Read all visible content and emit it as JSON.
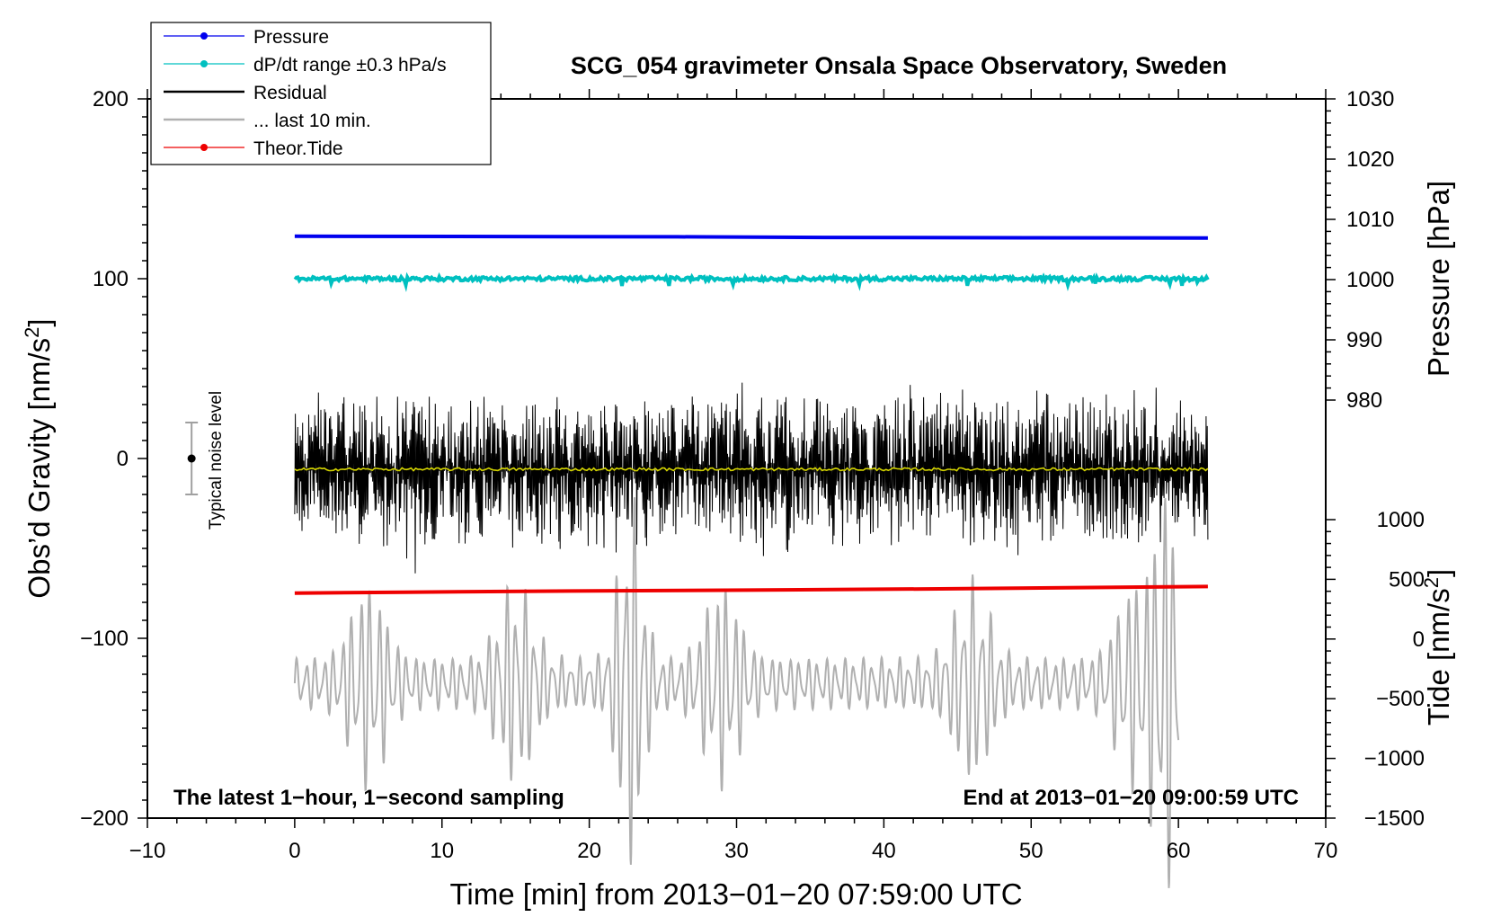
{
  "chart_data": {
    "type": "line",
    "title": "SCG_054 gravimeter Onsala Space Observatory, Sweden",
    "xlabel": "Time [min] from 2013−01−20 07:59:00 UTC",
    "ylabel": "Obs’d Gravity [nm/s",
    "ylabel_sup": "2",
    "ylabel_end": "]",
    "xlim": [
      -10,
      70
    ],
    "ylim": [
      -200,
      200
    ],
    "x_ticks": [
      -10,
      0,
      10,
      20,
      30,
      40,
      50,
      60,
      70
    ],
    "x_tick_labels": [
      "−10",
      "0",
      "10",
      "20",
      "30",
      "40",
      "50",
      "60",
      "70"
    ],
    "y_ticks": [
      -200,
      -100,
      0,
      100,
      200
    ],
    "y_tick_labels": [
      "−200",
      "−100",
      "0",
      "100",
      "200"
    ],
    "pressure_axis": {
      "label": "Pressure [hPa]",
      "ticks": [
        980,
        990,
        1000,
        1010,
        1020,
        1030
      ],
      "tick_labels": [
        "980",
        "990",
        "1000",
        "1010",
        "1020",
        "1030"
      ],
      "range": [
        970,
        1030
      ]
    },
    "tide_axis": {
      "label": "Tide [nm/s",
      "label_sup": "2",
      "label_end": "]",
      "ticks": [
        -1500,
        -1000,
        -500,
        0,
        500,
        1000
      ],
      "tick_labels": [
        "−1500",
        "−1000",
        "−500",
        "0",
        "500",
        "1000"
      ],
      "range": [
        -1500,
        1000
      ]
    },
    "series": [
      {
        "name": "Pressure",
        "color": "#0000ee",
        "axis": "pressure",
        "x": [
          0,
          26,
          36,
          62
        ],
        "values": [
          1007.2,
          1007.1,
          1007.0,
          1006.9
        ]
      },
      {
        "name": "dP/dt range ±0.3 hPa/s",
        "color": "#00c0c0",
        "axis": "gravity",
        "x": [
          0,
          62
        ],
        "values": [
          100,
          100
        ]
      },
      {
        "name": "Residual",
        "color": "#000000",
        "axis": "gravity",
        "x_range": [
          0,
          62
        ],
        "baseline": -6,
        "amplitude": 40
      },
      {
        "name": "... last 10 min.",
        "color": "#b0b0b0",
        "axis": "gravity",
        "x_range": [
          0,
          60
        ],
        "baseline": -125,
        "amplitude": 40
      },
      {
        "name": "Theor.Tide",
        "color": "#ee0000",
        "axis": "tide",
        "x": [
          0,
          7.5,
          18.8,
          30.7,
          43.8,
          62
        ],
        "values": [
          385,
          392,
          402,
          410,
          420,
          440
        ]
      },
      {
        "name": "Smoothed residual",
        "color": "#d4d400",
        "axis": "gravity",
        "x": [
          0,
          62
        ],
        "values": [
          -6,
          -6
        ]
      }
    ],
    "noise_bar": {
      "x": -7,
      "center": 0,
      "half_range": 20,
      "label": "Typical noise level"
    },
    "annotations": {
      "bottom_left": "The latest 1−hour, 1−second sampling",
      "bottom_right": "End at 2013−01−20 09:00:59 UTC"
    },
    "legend": {
      "position": "top-left",
      "entries": [
        {
          "label": "Pressure",
          "color": "#0000ee",
          "marker": true
        },
        {
          "label": "dP/dt range ±0.3 hPa/s",
          "color": "#00c0c0",
          "marker": true
        },
        {
          "label": "Residual",
          "color": "#000000",
          "marker": false
        },
        {
          "label": "... last 10 min.",
          "color": "#b0b0b0",
          "marker": false
        },
        {
          "label": "Theor.Tide",
          "color": "#ee0000",
          "marker": true
        }
      ]
    }
  }
}
